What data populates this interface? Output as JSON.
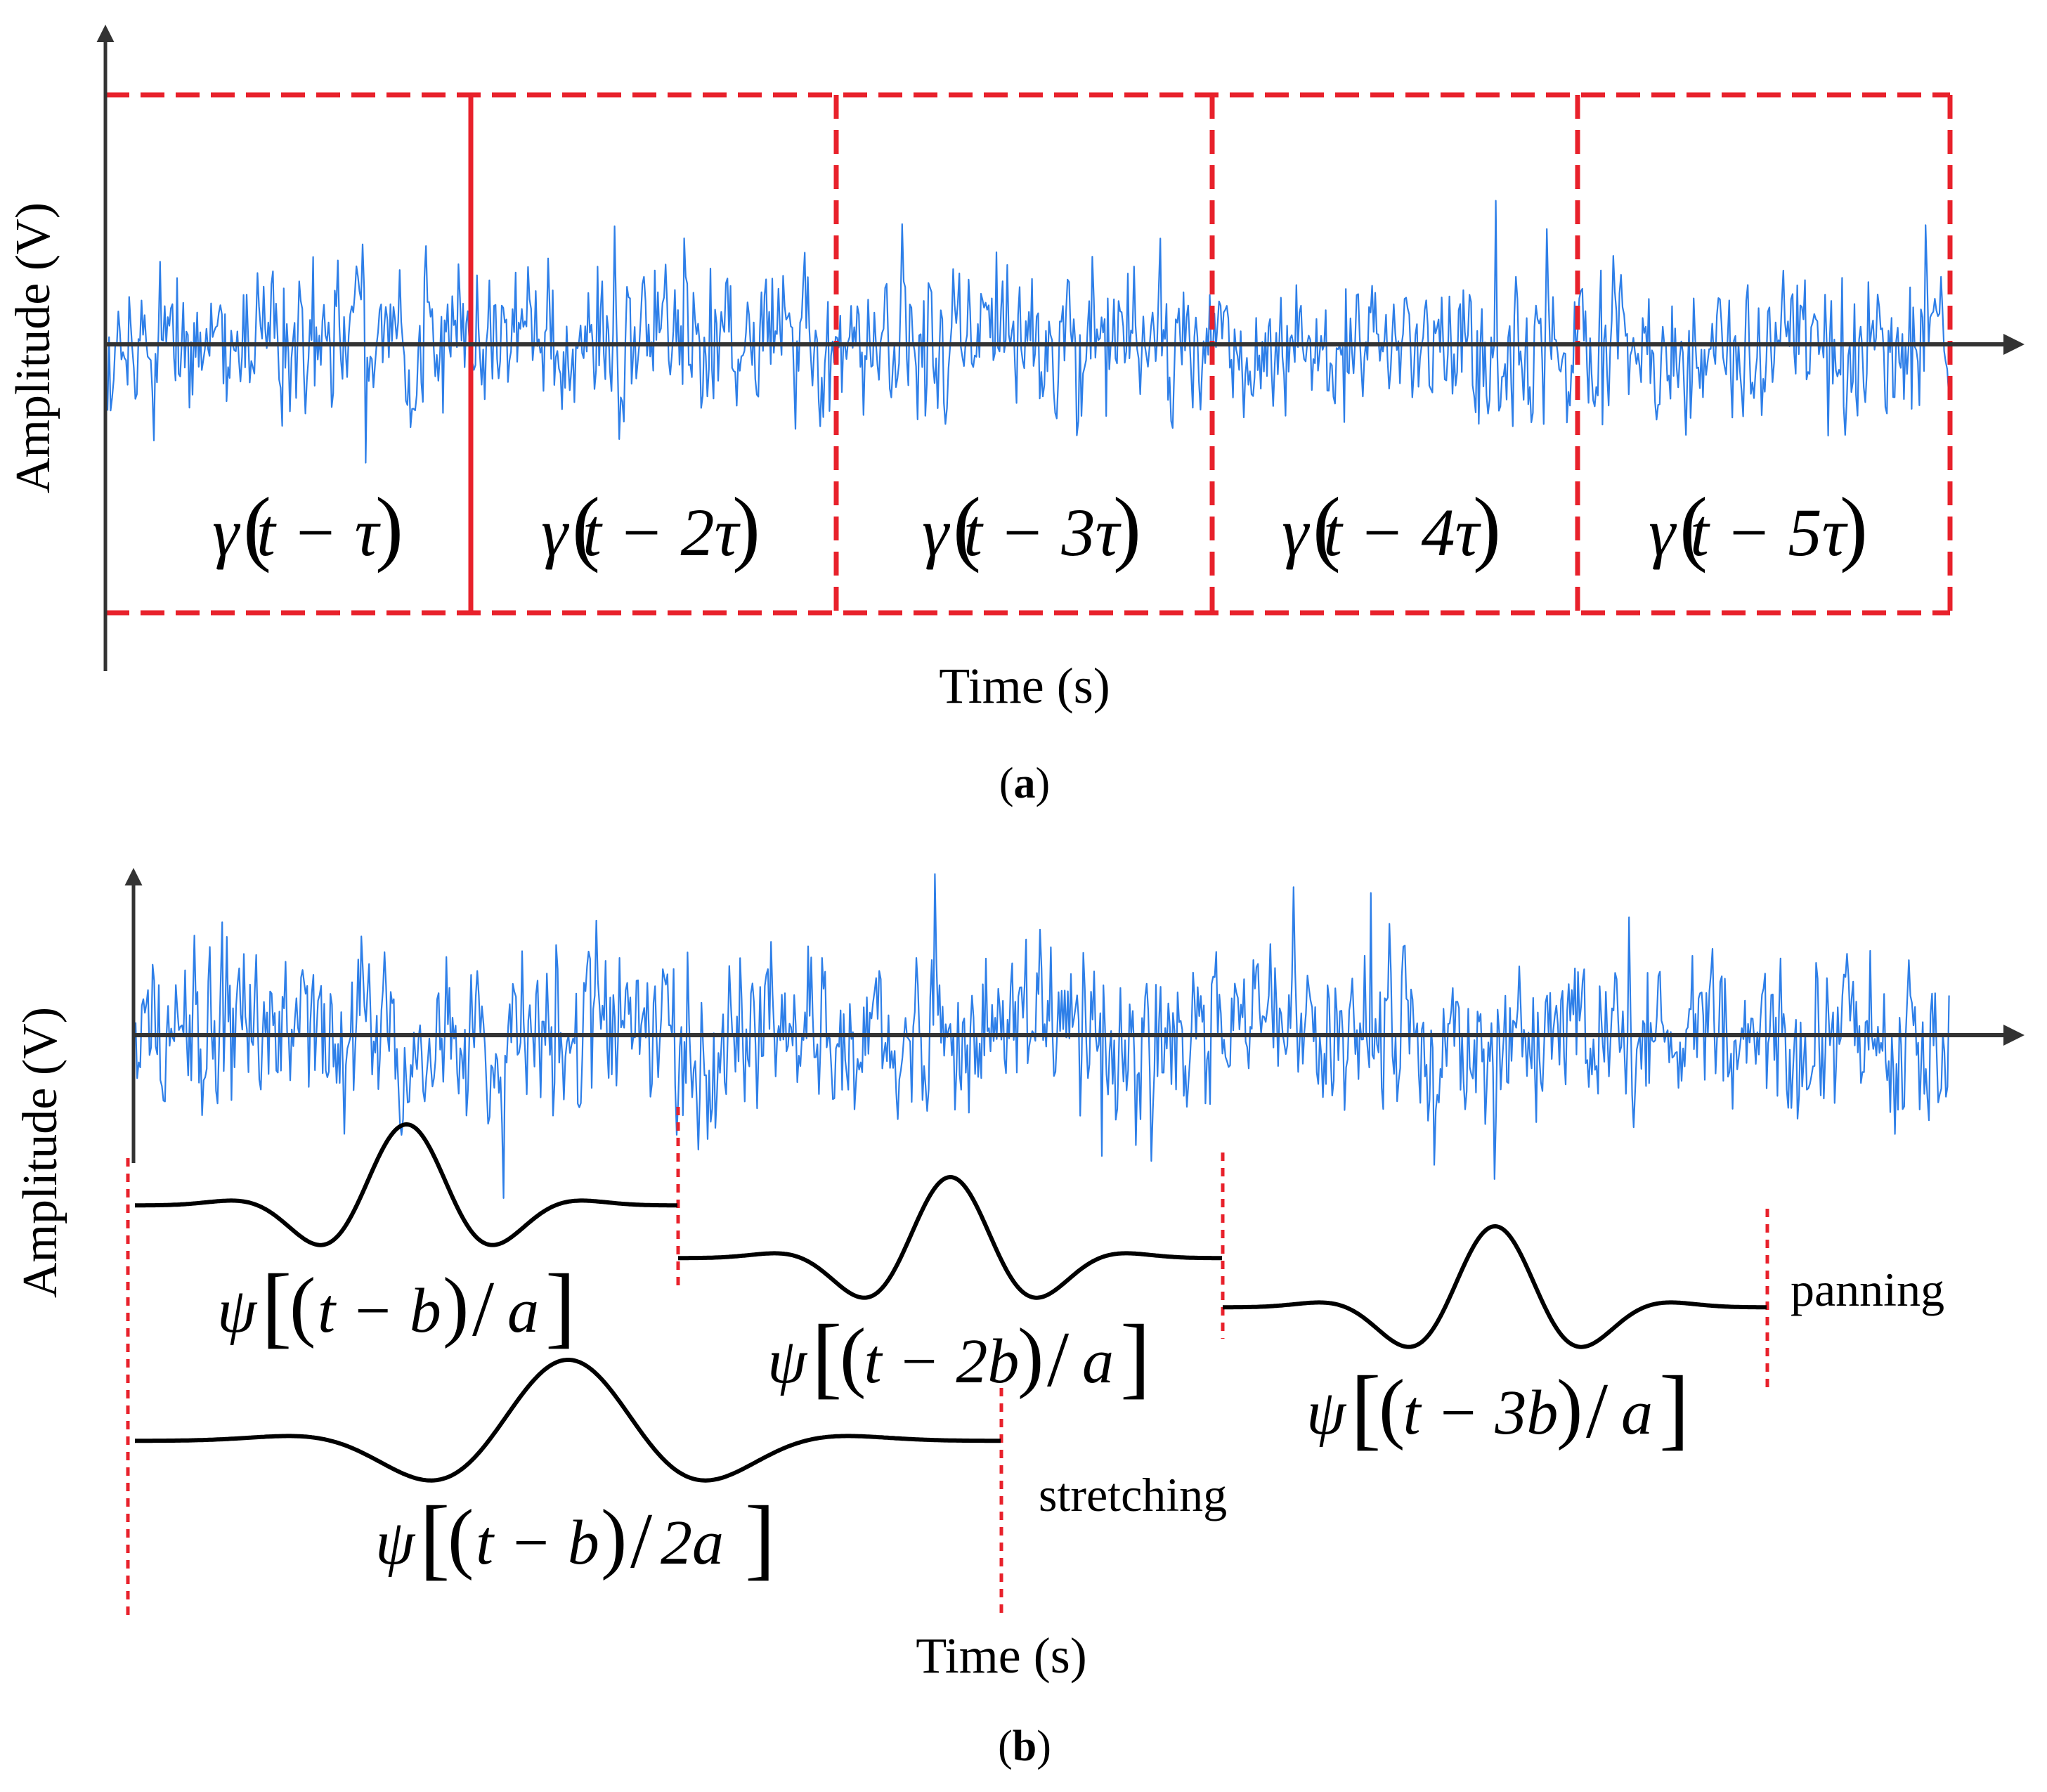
{
  "colors": {
    "signal": "#2e7fe8",
    "axis": "#333333",
    "frame": "#e8212b",
    "wavelet": "#000000"
  },
  "panel_a": {
    "y_axis_label": "Amplitude (V)",
    "x_axis_label": "Time (s)",
    "caption_letter": "a",
    "segments": [
      {
        "greek": "γ",
        "arg": "t − τ"
      },
      {
        "greek": "γ",
        "arg": "t − 2τ"
      },
      {
        "greek": "γ",
        "arg": "t − 3τ"
      },
      {
        "greek": "γ",
        "arg": "t − 4τ"
      },
      {
        "greek": "γ",
        "arg": "t − 5τ"
      }
    ]
  },
  "panel_b": {
    "y_axis_label": "Amplitude (V)",
    "x_axis_label": "Time (s)",
    "caption_letter": "b",
    "wavelets": [
      {
        "greek": "ψ",
        "inner": "t − b",
        "scale": "a"
      },
      {
        "greek": "ψ",
        "inner": "t − 2b",
        "scale": "a"
      },
      {
        "greek": "ψ",
        "inner": "t − 3b",
        "scale": "a"
      },
      {
        "greek": "ψ",
        "inner": "t − b",
        "scale": "2a"
      }
    ],
    "panning_label": "panning",
    "stretching_label": "stretching"
  }
}
